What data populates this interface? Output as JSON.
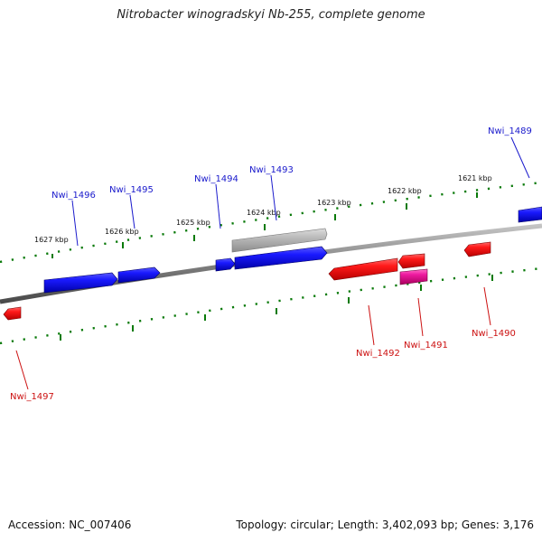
{
  "title": "Nitrobacter winogradskyi Nb-255, complete genome",
  "footer": {
    "accession": "Accession: NC_007406",
    "summary": "Topology: circular; Length: 3,402,093 bp; Genes: 3,176"
  },
  "colors": {
    "forward_gene": "#1010e8",
    "reverse_gene": "#ee1111",
    "reverse_gene_alt": "#e0189a",
    "rna_gene": "#b8b8b8",
    "backbone": "#808080",
    "tick": "#0a7a0a",
    "forward_label": "#1a1acc",
    "reverse_label": "#cc1111"
  },
  "scale": {
    "labels": [
      "1627 kbp",
      "1626 kbp",
      "1625 kbp",
      "1624 kbp",
      "1623 kbp",
      "1622 kbp",
      "1621 kbp"
    ]
  },
  "genes": [
    {
      "id": "Nwi_1489",
      "strand": "forward",
      "label": "Nwi_1489"
    },
    {
      "id": "Nwi_1490",
      "strand": "reverse",
      "label": "Nwi_1490"
    },
    {
      "id": "Nwi_1491",
      "strand": "reverse",
      "label": "Nwi_1491"
    },
    {
      "id": "Nwi_1492",
      "strand": "reverse",
      "label": "Nwi_1492"
    },
    {
      "id": "Nwi_1493",
      "strand": "forward",
      "label": "Nwi_1493"
    },
    {
      "id": "Nwi_1494",
      "strand": "forward",
      "label": "Nwi_1494"
    },
    {
      "id": "Nwi_1495",
      "strand": "forward",
      "label": "Nwi_1495"
    },
    {
      "id": "Nwi_1496",
      "strand": "forward",
      "label": "Nwi_1496"
    },
    {
      "id": "Nwi_1497",
      "strand": "reverse",
      "label": "Nwi_1497"
    }
  ]
}
